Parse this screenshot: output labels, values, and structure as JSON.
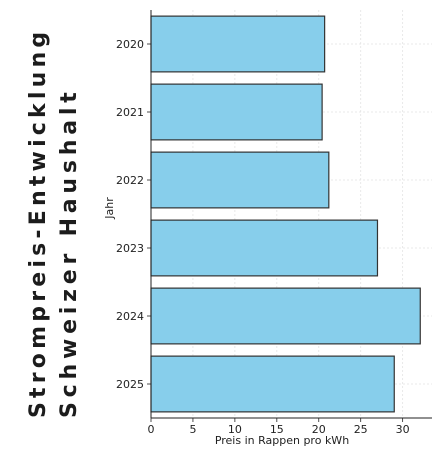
{
  "side_title": {
    "line1": "Strompreis-Entwicklung",
    "line2": "Schweizer Haushalt"
  },
  "colors": {
    "bar_fill": "#87ceeb",
    "bar_stroke": "#333333",
    "grid": "#e3e3e3",
    "text": "#222222",
    "side_title": "#1c1c1c"
  },
  "chart_data": {
    "type": "bar",
    "orientation": "horizontal",
    "categories": [
      "2020",
      "2021",
      "2022",
      "2023",
      "2024",
      "2025"
    ],
    "values": [
      20.7,
      20.4,
      21.2,
      27.0,
      32.1,
      29.0
    ],
    "xlabel": "Preis in Rappen pro kWh",
    "ylabel": "Jahr",
    "xlim": [
      0,
      33.5
    ],
    "xticks": [
      0,
      5,
      10,
      15,
      20,
      25,
      30
    ],
    "grid": true
  }
}
